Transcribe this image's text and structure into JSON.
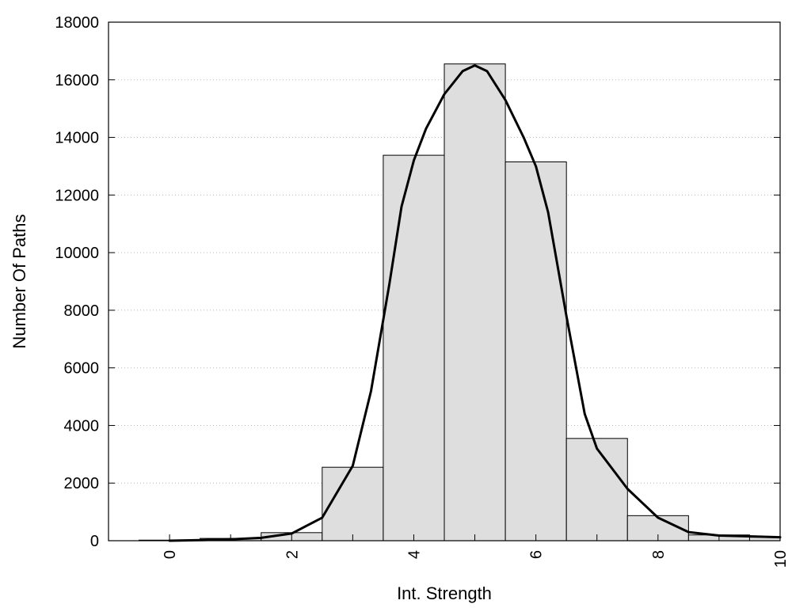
{
  "chart_data": {
    "type": "bar",
    "title": "",
    "xlabel": "Int. Strength",
    "ylabel": "Number Of Paths",
    "xlim": [
      -1,
      10
    ],
    "ylim": [
      0,
      18000
    ],
    "grid": "horizontal-dotted",
    "x_ticks": [
      0,
      2,
      4,
      6,
      8,
      10
    ],
    "y_ticks": [
      0,
      2000,
      4000,
      6000,
      8000,
      10000,
      12000,
      14000,
      16000,
      18000
    ],
    "bars": {
      "x": [
        0,
        1,
        2,
        3,
        4,
        5,
        6,
        7,
        8,
        9,
        10
      ],
      "values": [
        20,
        80,
        280,
        2550,
        13380,
        16550,
        13150,
        3550,
        870,
        200,
        120
      ],
      "fill": "#dedede",
      "stroke": "#000000"
    },
    "curve": {
      "x": [
        0,
        0.5,
        1,
        1.5,
        2,
        2.5,
        3,
        3.3,
        3.6,
        3.8,
        4,
        4.2,
        4.5,
        4.8,
        5,
        5.2,
        5.5,
        5.8,
        6,
        6.2,
        6.5,
        6.8,
        7,
        7.5,
        8,
        8.5,
        9,
        9.5,
        10
      ],
      "y": [
        0,
        20,
        50,
        100,
        250,
        800,
        2600,
        5200,
        8900,
        11600,
        13200,
        14300,
        15500,
        16300,
        16500,
        16300,
        15300,
        14000,
        13000,
        11400,
        7800,
        4400,
        3200,
        1800,
        800,
        300,
        180,
        150,
        120
      ],
      "stroke": "#000000"
    }
  }
}
